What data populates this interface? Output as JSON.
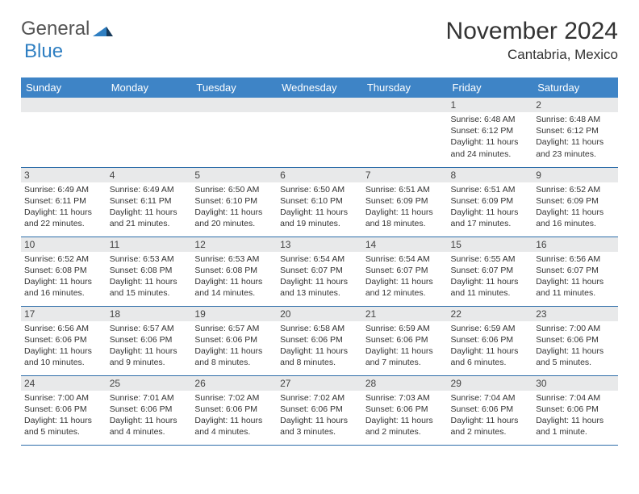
{
  "brand": {
    "word1": "General",
    "word2": "Blue"
  },
  "title": "November 2024",
  "location": "Cantabria, Mexico",
  "colors": {
    "header_bg": "#3e84c6",
    "header_text": "#ffffff",
    "daynum_bg": "#e8e9ea",
    "border": "#2e6ea9",
    "logo_blue": "#2f7fc2",
    "logo_dark": "#173a5a"
  },
  "daysOfWeek": [
    "Sunday",
    "Monday",
    "Tuesday",
    "Wednesday",
    "Thursday",
    "Friday",
    "Saturday"
  ],
  "weeks": [
    [
      null,
      null,
      null,
      null,
      null,
      {
        "n": "1",
        "sunrise": "6:48 AM",
        "sunset": "6:12 PM",
        "daylight": "11 hours and 24 minutes."
      },
      {
        "n": "2",
        "sunrise": "6:48 AM",
        "sunset": "6:12 PM",
        "daylight": "11 hours and 23 minutes."
      }
    ],
    [
      {
        "n": "3",
        "sunrise": "6:49 AM",
        "sunset": "6:11 PM",
        "daylight": "11 hours and 22 minutes."
      },
      {
        "n": "4",
        "sunrise": "6:49 AM",
        "sunset": "6:11 PM",
        "daylight": "11 hours and 21 minutes."
      },
      {
        "n": "5",
        "sunrise": "6:50 AM",
        "sunset": "6:10 PM",
        "daylight": "11 hours and 20 minutes."
      },
      {
        "n": "6",
        "sunrise": "6:50 AM",
        "sunset": "6:10 PM",
        "daylight": "11 hours and 19 minutes."
      },
      {
        "n": "7",
        "sunrise": "6:51 AM",
        "sunset": "6:09 PM",
        "daylight": "11 hours and 18 minutes."
      },
      {
        "n": "8",
        "sunrise": "6:51 AM",
        "sunset": "6:09 PM",
        "daylight": "11 hours and 17 minutes."
      },
      {
        "n": "9",
        "sunrise": "6:52 AM",
        "sunset": "6:09 PM",
        "daylight": "11 hours and 16 minutes."
      }
    ],
    [
      {
        "n": "10",
        "sunrise": "6:52 AM",
        "sunset": "6:08 PM",
        "daylight": "11 hours and 16 minutes."
      },
      {
        "n": "11",
        "sunrise": "6:53 AM",
        "sunset": "6:08 PM",
        "daylight": "11 hours and 15 minutes."
      },
      {
        "n": "12",
        "sunrise": "6:53 AM",
        "sunset": "6:08 PM",
        "daylight": "11 hours and 14 minutes."
      },
      {
        "n": "13",
        "sunrise": "6:54 AM",
        "sunset": "6:07 PM",
        "daylight": "11 hours and 13 minutes."
      },
      {
        "n": "14",
        "sunrise": "6:54 AM",
        "sunset": "6:07 PM",
        "daylight": "11 hours and 12 minutes."
      },
      {
        "n": "15",
        "sunrise": "6:55 AM",
        "sunset": "6:07 PM",
        "daylight": "11 hours and 11 minutes."
      },
      {
        "n": "16",
        "sunrise": "6:56 AM",
        "sunset": "6:07 PM",
        "daylight": "11 hours and 11 minutes."
      }
    ],
    [
      {
        "n": "17",
        "sunrise": "6:56 AM",
        "sunset": "6:06 PM",
        "daylight": "11 hours and 10 minutes."
      },
      {
        "n": "18",
        "sunrise": "6:57 AM",
        "sunset": "6:06 PM",
        "daylight": "11 hours and 9 minutes."
      },
      {
        "n": "19",
        "sunrise": "6:57 AM",
        "sunset": "6:06 PM",
        "daylight": "11 hours and 8 minutes."
      },
      {
        "n": "20",
        "sunrise": "6:58 AM",
        "sunset": "6:06 PM",
        "daylight": "11 hours and 8 minutes."
      },
      {
        "n": "21",
        "sunrise": "6:59 AM",
        "sunset": "6:06 PM",
        "daylight": "11 hours and 7 minutes."
      },
      {
        "n": "22",
        "sunrise": "6:59 AM",
        "sunset": "6:06 PM",
        "daylight": "11 hours and 6 minutes."
      },
      {
        "n": "23",
        "sunrise": "7:00 AM",
        "sunset": "6:06 PM",
        "daylight": "11 hours and 5 minutes."
      }
    ],
    [
      {
        "n": "24",
        "sunrise": "7:00 AM",
        "sunset": "6:06 PM",
        "daylight": "11 hours and 5 minutes."
      },
      {
        "n": "25",
        "sunrise": "7:01 AM",
        "sunset": "6:06 PM",
        "daylight": "11 hours and 4 minutes."
      },
      {
        "n": "26",
        "sunrise": "7:02 AM",
        "sunset": "6:06 PM",
        "daylight": "11 hours and 4 minutes."
      },
      {
        "n": "27",
        "sunrise": "7:02 AM",
        "sunset": "6:06 PM",
        "daylight": "11 hours and 3 minutes."
      },
      {
        "n": "28",
        "sunrise": "7:03 AM",
        "sunset": "6:06 PM",
        "daylight": "11 hours and 2 minutes."
      },
      {
        "n": "29",
        "sunrise": "7:04 AM",
        "sunset": "6:06 PM",
        "daylight": "11 hours and 2 minutes."
      },
      {
        "n": "30",
        "sunrise": "7:04 AM",
        "sunset": "6:06 PM",
        "daylight": "11 hours and 1 minute."
      }
    ]
  ],
  "labels": {
    "sunrise": "Sunrise:",
    "sunset": "Sunset:",
    "daylight": "Daylight:"
  }
}
